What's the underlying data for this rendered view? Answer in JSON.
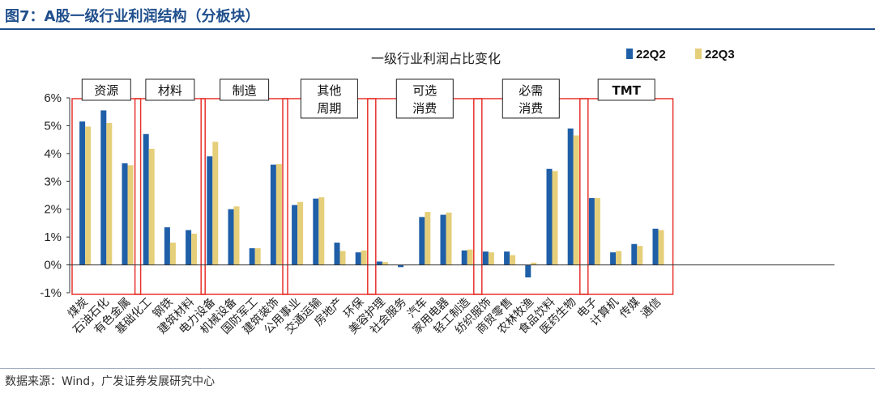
{
  "figure": {
    "title": "图7：A股一级行业利润结构（分板块）",
    "source": "数据来源：Wind，广发证券发展研究中心"
  },
  "colors": {
    "s1": "#1f5fa8",
    "s2": "#e6cf7a",
    "group_box": "#e8322d",
    "axis": "#333333",
    "title": "#1f4e8c"
  },
  "chart_data": {
    "type": "bar",
    "title": "一级行业利润占比变化",
    "xlabel": "",
    "ylabel": "",
    "ylim": [
      -1,
      6
    ],
    "yticks": [
      "-1%",
      "0%",
      "1%",
      "2%",
      "3%",
      "4%",
      "5%",
      "6%"
    ],
    "grid": false,
    "legend": "top-right",
    "categories": [
      "煤炭",
      "石油石化",
      "有色金属",
      "基础化工",
      "钢铁",
      "建筑材料",
      "电力设备",
      "机械设备",
      "国防军工",
      "建筑装饰",
      "公用事业",
      "交通运输",
      "房地产",
      "环保",
      "美容护理",
      "社会服务",
      "汽车",
      "家用电器",
      "轻工制造",
      "纺织服饰",
      "商贸零售",
      "农林牧渔",
      "食品饮料",
      "医药生物",
      "电子",
      "计算机",
      "传媒",
      "通信"
    ],
    "series": [
      {
        "name": "22Q2",
        "values": [
          5.15,
          5.55,
          3.65,
          4.7,
          1.35,
          1.25,
          3.9,
          2.0,
          0.6,
          3.6,
          2.15,
          2.38,
          0.8,
          0.45,
          0.12,
          -0.08,
          1.72,
          1.8,
          0.52,
          0.48,
          0.48,
          -0.45,
          3.45,
          4.9,
          2.4,
          0.45,
          0.75,
          1.3
        ]
      },
      {
        "name": "22Q3",
        "values": [
          4.97,
          5.1,
          3.58,
          4.17,
          0.8,
          1.12,
          4.42,
          2.1,
          0.6,
          3.62,
          2.26,
          2.43,
          0.5,
          0.52,
          0.1,
          0.0,
          1.9,
          1.88,
          0.55,
          0.45,
          0.35,
          0.08,
          3.37,
          4.65,
          2.4,
          0.5,
          0.68,
          1.25
        ]
      }
    ],
    "groups": [
      {
        "label_lines": [
          "资源"
        ],
        "start": 0,
        "end": 2
      },
      {
        "label_lines": [
          "材料"
        ],
        "start": 3,
        "end": 5
      },
      {
        "label_lines": [
          "制造"
        ],
        "start": 6,
        "end": 9
      },
      {
        "label_lines": [
          "其他",
          "周期"
        ],
        "start": 10,
        "end": 13
      },
      {
        "label_lines": [
          "可选",
          "消费"
        ],
        "start": 14,
        "end": 18
      },
      {
        "label_lines": [
          "必需",
          "消费"
        ],
        "start": 19,
        "end": 23
      },
      {
        "label_lines": [
          "TMT"
        ],
        "start": 24,
        "end": 27
      }
    ]
  }
}
